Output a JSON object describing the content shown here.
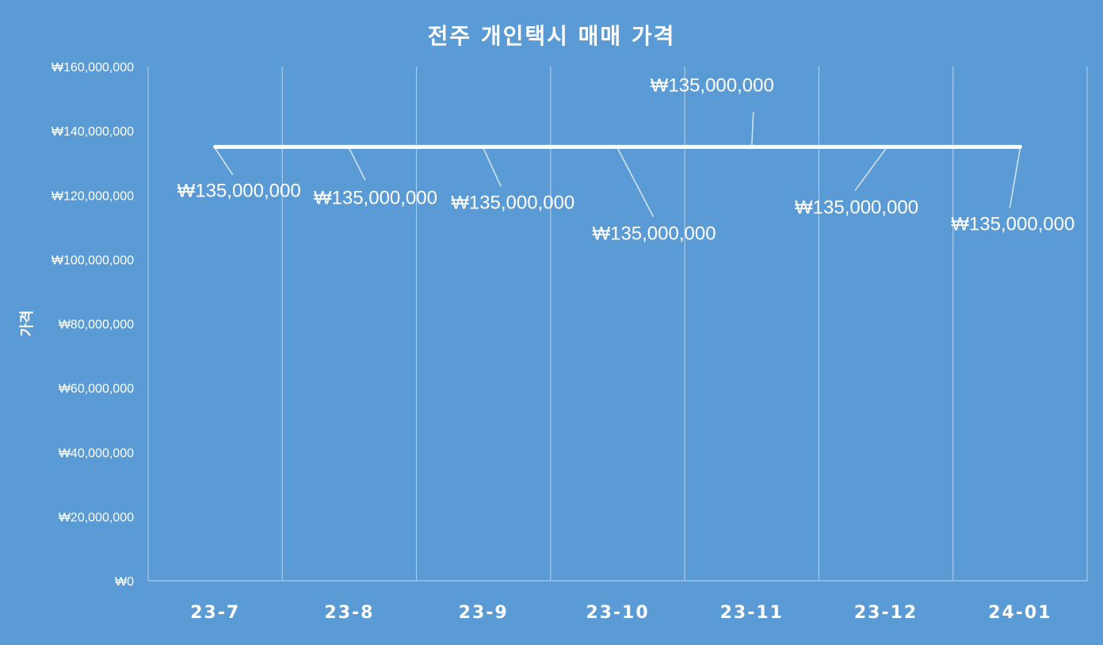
{
  "chart_data": {
    "type": "line",
    "title": "전주 개인택시 매매 가격",
    "xlabel": "",
    "ylabel": "가격",
    "categories": [
      "23-7",
      "23-8",
      "23-9",
      "23-10",
      "23-11",
      "23-12",
      "24-01"
    ],
    "series": [
      {
        "values": [
          135000000,
          135000000,
          135000000,
          135000000,
          135000000,
          135000000,
          135000000
        ]
      }
    ],
    "data_labels": [
      "₩135,000,000",
      "₩135,000,000",
      "₩135,000,000",
      "₩135,000,000",
      "₩135,000,000",
      "₩135,000,000",
      "₩135,000,000"
    ],
    "ylim": [
      0,
      160000000
    ],
    "y_ticks": [
      0,
      20000000,
      40000000,
      60000000,
      80000000,
      100000000,
      120000000,
      140000000,
      160000000
    ],
    "y_tick_labels": [
      "₩0",
      "₩20,000,000",
      "₩40,000,000",
      "₩60,000,000",
      "₩80,000,000",
      "₩100,000,000",
      "₩120,000,000",
      "₩140,000,000",
      "₩160,000,000"
    ],
    "grid": "vertical",
    "legend": "none",
    "colors": {
      "background": "#5b9bd5",
      "line": "#ffffff",
      "gridline": "#a9c9ea",
      "text": "#ffffff"
    }
  }
}
